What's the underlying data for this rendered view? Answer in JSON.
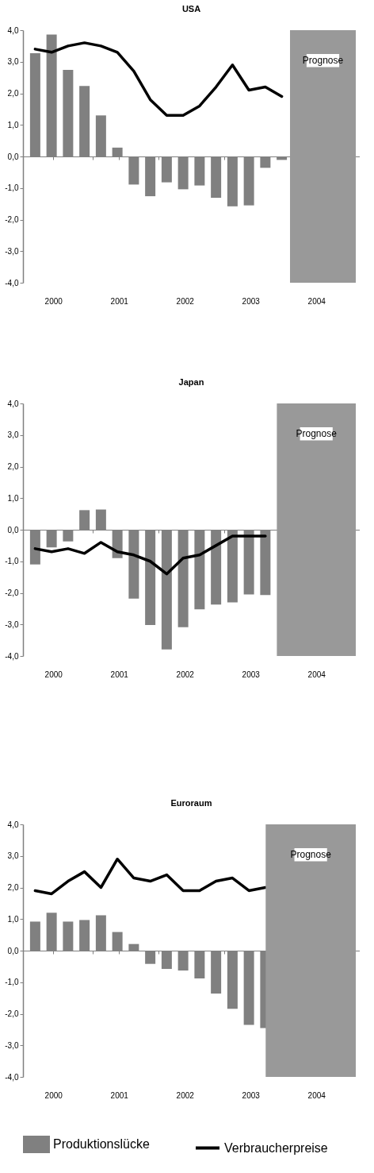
{
  "chart_data": [
    {
      "type": "bar",
      "title": "USA",
      "x": [
        2000.125,
        2000.375,
        2000.625,
        2000.875,
        2001.125,
        2001.375,
        2001.625,
        2001.875,
        2002.125,
        2002.375,
        2002.625,
        2002.875,
        2003.125,
        2003.375,
        2003.625,
        2003.875
      ],
      "series": [
        {
          "color": "#808080",
          "values": [
            3.27,
            3.86,
            2.74,
            2.23,
            1.3,
            0.28,
            -0.89,
            -1.26,
            -0.82,
            -1.04,
            -0.92,
            -1.31,
            -1.58,
            -1.55,
            -0.36,
            -0.11
          ]
        },
        {
          "type": "line",
          "color": "#000000",
          "values": [
            3.4,
            3.3,
            3.5,
            3.6,
            3.5,
            3.3,
            2.7,
            1.8,
            1.3,
            1.3,
            1.6,
            2.2,
            2.9,
            2.1,
            2.2,
            1.9
          ]
        }
      ],
      "xlim": [
        2000,
        2005
      ],
      "xticks": [
        {
          "value": 2000.4,
          "label": "2000"
        },
        {
          "value": 2001,
          "label": null
        },
        {
          "value": 2001.4,
          "label": "2001"
        },
        {
          "value": 2002,
          "label": null
        },
        {
          "value": 2002.4,
          "label": "2002"
        },
        {
          "value": 2003,
          "label": null
        },
        {
          "value": 2003.4,
          "label": "2003"
        },
        {
          "value": 2004.4,
          "label": "2004"
        }
      ],
      "ylim": [
        -4,
        4
      ],
      "yticks": [
        {
          "value": -4,
          "label": "-4,0"
        },
        {
          "value": -3,
          "label": "-3,0"
        },
        {
          "value": -2,
          "label": "-2,0"
        },
        {
          "value": -1,
          "label": "-1,0"
        },
        {
          "value": 0,
          "label": "0,0"
        },
        {
          "value": 1,
          "label": "1,0"
        },
        {
          "value": 2,
          "label": "2,0"
        },
        {
          "value": 3,
          "label": "3,0"
        },
        {
          "value": 4,
          "label": "4,0"
        }
      ],
      "bands": [
        {
          "axis": "x",
          "from": 2004,
          "to": 2005,
          "label": "Prognose",
          "color": "#999999"
        }
      ]
    },
    {
      "type": "bar",
      "title": "Japan",
      "x": [
        2000.125,
        2000.375,
        2000.625,
        2000.875,
        2001.125,
        2001.375,
        2001.625,
        2001.875,
        2002.125,
        2002.375,
        2002.625,
        2002.875,
        2003.125,
        2003.375,
        2003.625
      ],
      "series": [
        {
          "color": "#808080",
          "values": [
            -1.1,
            -0.56,
            -0.37,
            0.62,
            0.64,
            -0.9,
            -2.18,
            -3.02,
            -3.79,
            -3.09,
            -2.52,
            -2.37,
            -2.3,
            -2.05,
            -2.07
          ]
        },
        {
          "type": "line",
          "color": "#000000",
          "values": [
            -0.6,
            -0.7,
            -0.6,
            -0.75,
            -0.4,
            -0.7,
            -0.8,
            -1.0,
            -1.4,
            -0.9,
            -0.8,
            -0.5,
            -0.2,
            -0.2,
            -0.2
          ]
        }
      ],
      "xlim": [
        2000,
        2005
      ],
      "xticks": [
        {
          "value": 2000.4,
          "label": "2000"
        },
        {
          "value": 2001,
          "label": null
        },
        {
          "value": 2001.4,
          "label": "2001"
        },
        {
          "value": 2002,
          "label": null
        },
        {
          "value": 2002.4,
          "label": "2002"
        },
        {
          "value": 2003,
          "label": null
        },
        {
          "value": 2003.4,
          "label": "2003"
        },
        {
          "value": 2004.4,
          "label": "2004"
        }
      ],
      "ylim": [
        -4,
        4
      ],
      "yticks": [
        {
          "value": -4,
          "label": "-4,0"
        },
        {
          "value": -3,
          "label": "-3,0"
        },
        {
          "value": -2,
          "label": "-2,0"
        },
        {
          "value": -1,
          "label": "-1,0"
        },
        {
          "value": 0,
          "label": "0,0"
        },
        {
          "value": 1,
          "label": "1,0"
        },
        {
          "value": 2,
          "label": "2,0"
        },
        {
          "value": 3,
          "label": "3,0"
        },
        {
          "value": 4,
          "label": "4,0"
        }
      ],
      "bands": [
        {
          "axis": "x",
          "from": 2003.8,
          "to": 2005,
          "label": "Prognose",
          "color": "#999999"
        }
      ]
    },
    {
      "type": "bar",
      "title": "Euroraum",
      "x": [
        2000.125,
        2000.375,
        2000.625,
        2000.875,
        2001.125,
        2001.375,
        2001.625,
        2001.875,
        2002.125,
        2002.375,
        2002.625,
        2002.875,
        2003.125,
        2003.375,
        2003.625
      ],
      "series": [
        {
          "name": "Produktionslücke",
          "color": "#808080",
          "values": [
            0.92,
            1.2,
            0.92,
            0.97,
            1.12,
            0.59,
            0.21,
            -0.42,
            -0.58,
            -0.63,
            -0.88,
            -1.36,
            -1.84,
            -2.35,
            -2.45
          ]
        },
        {
          "name": "Verbraucherpreise",
          "type": "line",
          "color": "#000000",
          "values": [
            1.9,
            1.8,
            2.2,
            2.5,
            2.0,
            2.9,
            2.3,
            2.2,
            2.4,
            1.9,
            1.9,
            2.2,
            2.3,
            1.9,
            2.0
          ]
        }
      ],
      "xlim": [
        2000,
        2005
      ],
      "xticks": [
        {
          "value": 2000.4,
          "label": "2000"
        },
        {
          "value": 2001,
          "label": null
        },
        {
          "value": 2001.4,
          "label": "2001"
        },
        {
          "value": 2002,
          "label": null
        },
        {
          "value": 2002.4,
          "label": "2002"
        },
        {
          "value": 2003,
          "label": null
        },
        {
          "value": 2003.4,
          "label": "2003"
        },
        {
          "value": 2004.4,
          "label": "2004"
        }
      ],
      "ylim": [
        -4,
        4
      ],
      "yticks": [
        {
          "value": -4,
          "label": "-4,0"
        },
        {
          "value": -3,
          "label": "-3,0"
        },
        {
          "value": -2,
          "label": "-2,0"
        },
        {
          "value": -1,
          "label": "-1,0"
        },
        {
          "value": 0,
          "label": "0,0"
        },
        {
          "value": 1,
          "label": "1,0"
        },
        {
          "value": 2,
          "label": "2,0"
        },
        {
          "value": 3,
          "label": "3,0"
        },
        {
          "value": 4,
          "label": "4,0"
        }
      ],
      "bands": [
        {
          "axis": "x",
          "from": 2003.63,
          "to": 2005,
          "label": "Prognose",
          "color": "#999999"
        }
      ],
      "legend": "bottom"
    }
  ]
}
